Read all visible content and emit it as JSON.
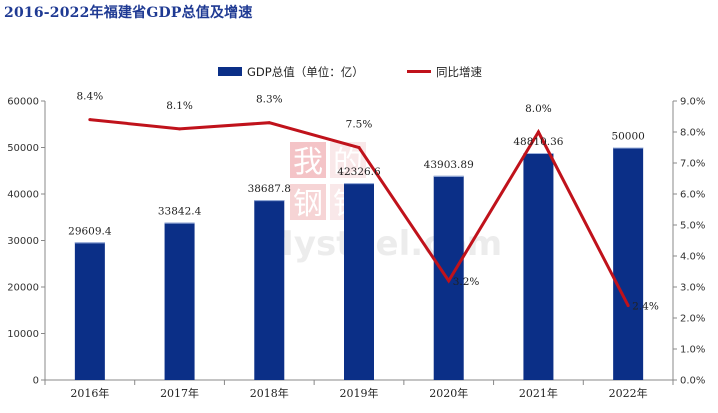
{
  "chart_data": {
    "type": "bar+line",
    "title": "2016-2022年福建省GDP总值及增速",
    "categories": [
      "2016年",
      "2017年",
      "2018年",
      "2019年",
      "2020年",
      "2021年",
      "2022年"
    ],
    "series": [
      {
        "name": "GDP总值（单位：亿）",
        "type": "bar",
        "axis": "left",
        "color": "#0b2f87",
        "values": [
          29609.4,
          33842.4,
          38687.8,
          42326.6,
          43903.89,
          48810.36,
          50000
        ],
        "labels": [
          "29609.4",
          "33842.4",
          "38687.8",
          "42326.6",
          "43903.89",
          "48810.36",
          "50000"
        ]
      },
      {
        "name": "同比增速",
        "type": "line",
        "axis": "right",
        "color": "#c0121b",
        "values": [
          8.4,
          8.1,
          8.3,
          7.5,
          3.2,
          8.0,
          2.4
        ],
        "labels": [
          "8.4%",
          "8.1%",
          "8.3%",
          "7.5%",
          "3.2%",
          "8.0%",
          "2.4%"
        ]
      }
    ],
    "y_left": {
      "min": 0,
      "max": 60000,
      "ticks": [
        "0",
        "10000",
        "20000",
        "30000",
        "40000",
        "50000",
        "60000"
      ]
    },
    "y_right": {
      "min": 0,
      "max": 9,
      "ticks": [
        "0.0%",
        "1.0%",
        "2.0%",
        "3.0%",
        "4.0%",
        "5.0%",
        "6.0%",
        "7.0%",
        "8.0%",
        "9.0%"
      ]
    },
    "grid": false,
    "legend": "top-center",
    "watermark": {
      "top": "我的",
      "middle": "钢铁",
      "bottom": "Mysteel.com"
    }
  }
}
